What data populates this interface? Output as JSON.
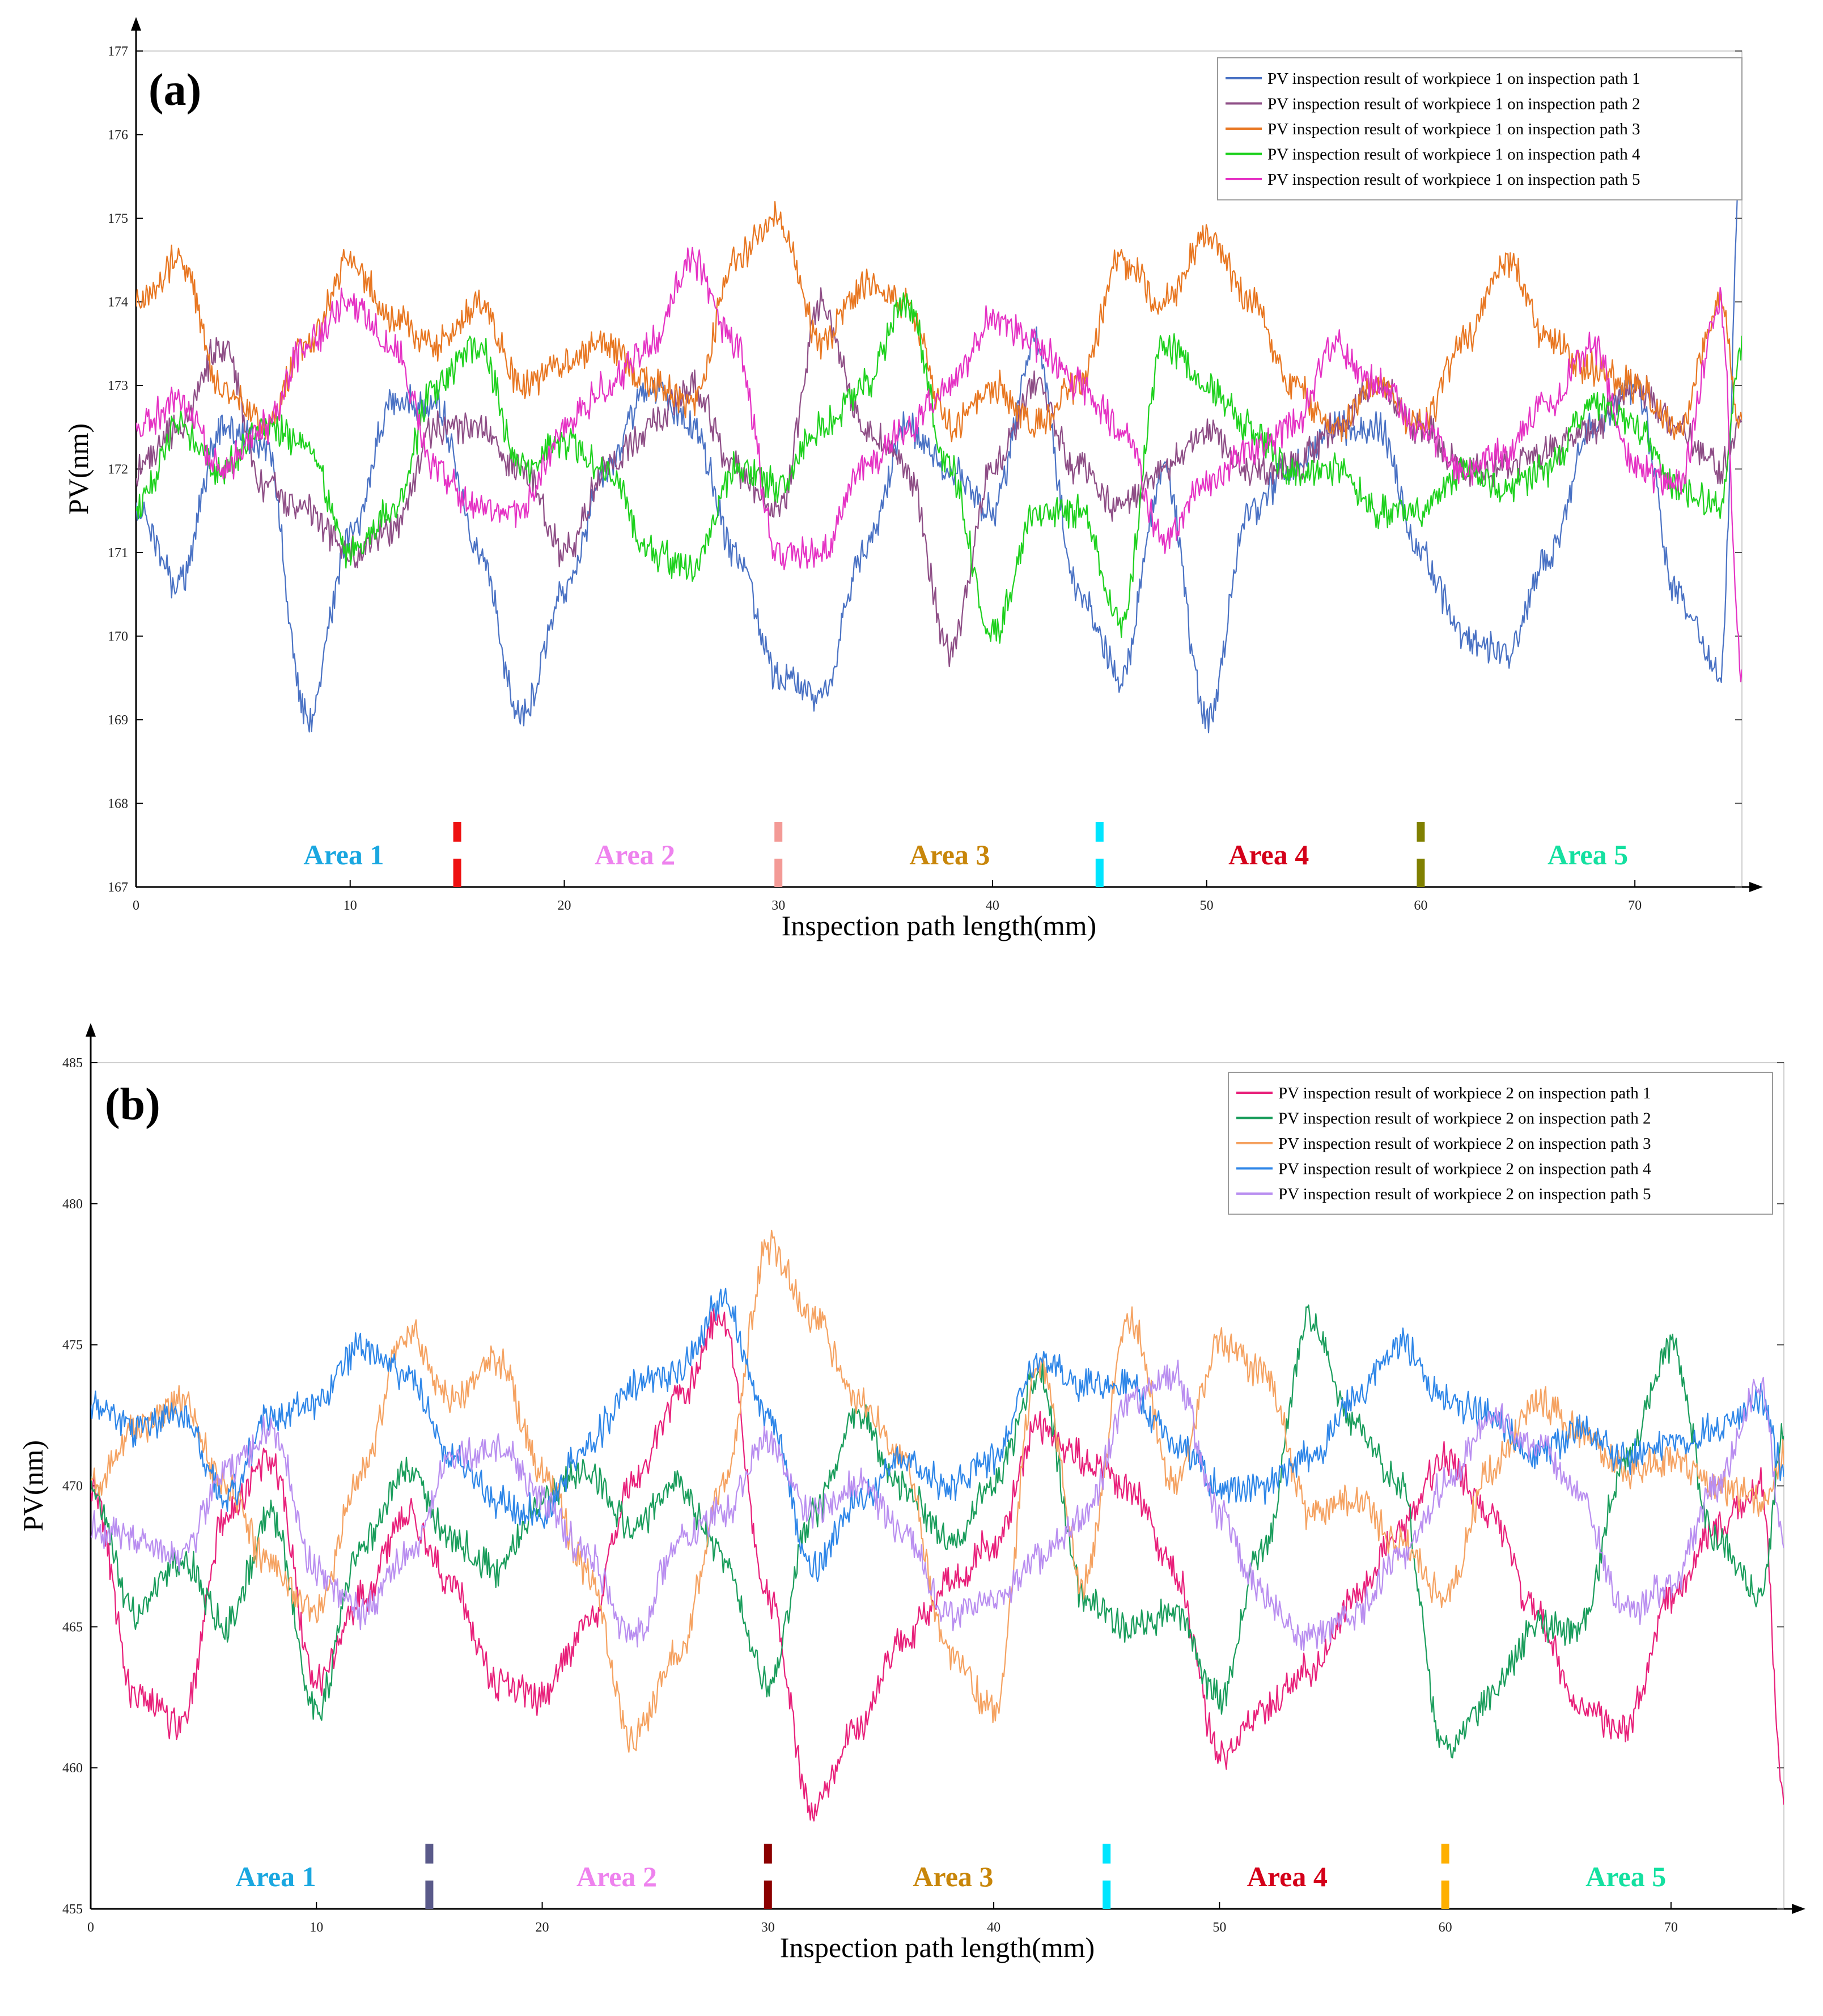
{
  "chart_data": [
    {
      "panel_label": "(a)",
      "type": "line",
      "xlabel": "Inspection path length(mm)",
      "ylabel": "PV(nm)",
      "xlim": [
        0,
        75
      ],
      "ylim": [
        167,
        177
      ],
      "xticks": [
        0,
        10,
        20,
        30,
        40,
        50,
        60,
        70
      ],
      "xtick_labels": [
        "0",
        "10",
        "20",
        "30",
        "40",
        "50",
        "60",
        "70"
      ],
      "yticks": [
        167,
        168,
        169,
        170,
        171,
        172,
        173,
        174,
        175,
        176,
        177
      ],
      "ytick_labels": [
        "167",
        "168",
        "169",
        "170",
        "171",
        "172",
        "173",
        "174",
        "175",
        "176",
        "177"
      ],
      "legend_position": "top-right",
      "series": [
        {
          "name": "PV inspection result of workpiece 1 on inspection path 1",
          "color": "#4a72c4",
          "x": [
            0,
            2,
            4,
            6,
            8,
            10,
            12,
            14,
            16,
            18,
            20,
            22,
            24,
            26,
            28,
            30,
            32,
            34,
            36,
            38,
            40,
            42,
            44,
            46,
            48,
            50,
            52,
            54,
            56,
            58,
            60,
            62,
            64,
            66,
            68,
            70,
            72,
            74,
            75
          ],
          "values": [
            171.5,
            170.6,
            172.5,
            172.3,
            169.0,
            171.2,
            172.8,
            172.8,
            171.0,
            169.0,
            170.5,
            172.0,
            173.0,
            172.5,
            171.0,
            169.5,
            169.3,
            171.0,
            172.5,
            172.0,
            171.5,
            173.5,
            170.5,
            169.5,
            172.0,
            169.0,
            171.5,
            172.0,
            172.5,
            172.5,
            171.0,
            170.0,
            169.8,
            171.0,
            172.5,
            173.0,
            170.5,
            169.5,
            176.0
          ]
        },
        {
          "name": "PV inspection result of workpiece 1 on inspection path 2",
          "color": "#8e4e86",
          "x": [
            0,
            2,
            4,
            6,
            8,
            10,
            12,
            14,
            16,
            18,
            20,
            22,
            24,
            26,
            28,
            30,
            32,
            34,
            36,
            38,
            40,
            42,
            44,
            46,
            48,
            50,
            52,
            54,
            56,
            58,
            60,
            62,
            64,
            66,
            68,
            70,
            72,
            74,
            75
          ],
          "values": [
            172.0,
            172.5,
            173.5,
            171.8,
            171.5,
            171.0,
            171.3,
            172.5,
            172.5,
            172.0,
            171.0,
            172.0,
            172.5,
            173.0,
            172.0,
            171.5,
            174.0,
            172.5,
            172.0,
            169.8,
            172.0,
            173.0,
            172.0,
            171.5,
            172.0,
            172.5,
            172.0,
            172.0,
            172.5,
            173.0,
            172.5,
            172.0,
            172.0,
            172.2,
            172.5,
            173.0,
            172.5,
            172.0,
            172.5
          ]
        },
        {
          "name": "PV inspection result of workpiece 1 on inspection path 3",
          "color": "#e87722",
          "x": [
            0,
            2,
            4,
            6,
            8,
            10,
            12,
            14,
            16,
            18,
            20,
            22,
            24,
            26,
            28,
            30,
            32,
            34,
            36,
            38,
            40,
            42,
            44,
            46,
            48,
            50,
            52,
            54,
            56,
            58,
            60,
            62,
            64,
            66,
            68,
            70,
            72,
            74,
            75
          ],
          "values": [
            174.0,
            174.5,
            173.0,
            172.5,
            173.5,
            174.5,
            173.8,
            173.5,
            174.0,
            173.0,
            173.3,
            173.5,
            173.0,
            172.8,
            174.5,
            175.0,
            173.5,
            174.2,
            174.0,
            172.5,
            173.0,
            172.5,
            173.0,
            174.5,
            174.0,
            174.8,
            174.0,
            173.0,
            172.5,
            173.0,
            172.5,
            173.5,
            174.5,
            173.5,
            173.2,
            173.0,
            172.5,
            174.0,
            172.5
          ]
        },
        {
          "name": "PV inspection result of workpiece 1 on inspection path 4",
          "color": "#1ed11e",
          "x": [
            0,
            2,
            4,
            6,
            8,
            10,
            12,
            14,
            16,
            18,
            20,
            22,
            24,
            26,
            28,
            30,
            32,
            34,
            36,
            38,
            40,
            42,
            44,
            46,
            48,
            50,
            52,
            54,
            56,
            58,
            60,
            62,
            64,
            66,
            68,
            70,
            72,
            74,
            75
          ],
          "values": [
            171.5,
            172.5,
            172.0,
            172.5,
            172.3,
            171.0,
            171.5,
            173.0,
            173.5,
            172.0,
            172.3,
            172.0,
            171.0,
            170.8,
            172.0,
            171.8,
            172.5,
            173.0,
            174.0,
            172.0,
            170.0,
            171.5,
            171.5,
            170.2,
            173.5,
            173.0,
            172.5,
            172.0,
            172.0,
            171.5,
            171.5,
            172.0,
            171.8,
            172.0,
            172.8,
            172.5,
            171.8,
            171.5,
            173.5
          ]
        },
        {
          "name": "PV inspection result of workpiece 1 on inspection path 5",
          "color": "#e532c4",
          "x": [
            0,
            2,
            4,
            6,
            8,
            10,
            12,
            14,
            16,
            18,
            20,
            22,
            24,
            26,
            28,
            30,
            32,
            34,
            36,
            38,
            40,
            42,
            44,
            46,
            48,
            50,
            52,
            54,
            56,
            58,
            60,
            62,
            64,
            66,
            68,
            70,
            72,
            74,
            75
          ],
          "values": [
            172.5,
            172.8,
            172.0,
            172.5,
            173.5,
            174.0,
            173.5,
            172.0,
            171.5,
            171.5,
            172.5,
            173.0,
            173.5,
            174.5,
            173.5,
            171.0,
            171.0,
            172.0,
            172.5,
            173.0,
            173.8,
            173.5,
            173.0,
            172.5,
            171.2,
            171.8,
            172.2,
            172.5,
            173.5,
            173.0,
            172.5,
            172.0,
            172.2,
            172.8,
            173.5,
            172.0,
            171.8,
            174.0,
            169.5
          ]
        }
      ],
      "area_labels": [
        {
          "text": "Area 1",
          "x": 9.7,
          "color": "#1aa7e0"
        },
        {
          "text": "Area 2",
          "x": 23.3,
          "color": "#ee82ee"
        },
        {
          "text": "Area 3",
          "x": 38.0,
          "color": "#c8860a"
        },
        {
          "text": "Area 4",
          "x": 52.9,
          "color": "#d4001a"
        },
        {
          "text": "Area 5",
          "x": 67.8,
          "color": "#14e0a0"
        }
      ],
      "boundaries": [
        {
          "x": 15,
          "color": "#ee1111"
        },
        {
          "x": 30,
          "color": "#f39a96"
        },
        {
          "x": 45,
          "color": "#00e5ff"
        },
        {
          "x": 60,
          "color": "#808000"
        }
      ]
    },
    {
      "panel_label": "(b)",
      "type": "line",
      "xlabel": "Inspection path length(mm)",
      "ylabel": "PV(nm)",
      "xlim": [
        0,
        75
      ],
      "ylim": [
        455,
        485
      ],
      "xticks": [
        0,
        10,
        20,
        30,
        40,
        50,
        60,
        70
      ],
      "xtick_labels": [
        "0",
        "10",
        "20",
        "30",
        "40",
        "50",
        "60",
        "70"
      ],
      "yticks": [
        455,
        460,
        465,
        470,
        475,
        480,
        485
      ],
      "ytick_labels": [
        "455",
        "460",
        "465",
        "470",
        "475",
        "480",
        "485"
      ],
      "legend_position": "top-right",
      "series": [
        {
          "name": "PV inspection result of workpiece 2 on inspection path 1",
          "color": "#e8207a",
          "x": [
            0,
            2,
            4,
            6,
            8,
            10,
            12,
            14,
            16,
            18,
            20,
            22,
            24,
            26,
            28,
            30,
            32,
            34,
            36,
            38,
            40,
            42,
            44,
            46,
            48,
            50,
            52,
            54,
            56,
            58,
            60,
            62,
            64,
            66,
            68,
            70,
            72,
            74,
            75
          ],
          "values": [
            470.0,
            462.5,
            461.5,
            469.0,
            471.0,
            463.0,
            466.0,
            469.0,
            466.5,
            463.0,
            462.5,
            465.0,
            470.0,
            473.0,
            476.0,
            466.0,
            458.5,
            461.5,
            464.5,
            466.5,
            468.0,
            472.0,
            471.0,
            470.0,
            467.0,
            460.5,
            462.0,
            463.5,
            466.0,
            468.5,
            471.0,
            469.0,
            465.5,
            462.0,
            461.5,
            466.0,
            468.5,
            470.0,
            459.0
          ]
        },
        {
          "name": "PV inspection result of workpiece 2 on inspection path 2",
          "color": "#1a9d5c",
          "x": [
            0,
            2,
            4,
            6,
            8,
            10,
            12,
            14,
            16,
            18,
            20,
            22,
            24,
            26,
            28,
            30,
            32,
            34,
            36,
            38,
            40,
            42,
            44,
            46,
            48,
            50,
            52,
            54,
            56,
            58,
            60,
            62,
            64,
            66,
            68,
            70,
            72,
            74,
            75
          ],
          "values": [
            470.0,
            465.5,
            467.5,
            465.0,
            469.0,
            462.0,
            468.0,
            470.5,
            468.0,
            467.0,
            469.5,
            470.5,
            468.5,
            470.0,
            467.5,
            463.0,
            469.0,
            472.5,
            470.0,
            468.0,
            470.0,
            474.0,
            466.0,
            465.0,
            465.5,
            462.5,
            468.0,
            476.0,
            472.0,
            470.0,
            460.5,
            462.5,
            465.0,
            465.0,
            471.0,
            475.0,
            468.0,
            466.0,
            472.0
          ]
        },
        {
          "name": "PV inspection result of workpiece 2 on inspection path 3",
          "color": "#f5a261",
          "x": [
            0,
            2,
            4,
            6,
            8,
            10,
            12,
            14,
            16,
            18,
            20,
            22,
            24,
            26,
            28,
            30,
            32,
            34,
            36,
            38,
            40,
            42,
            44,
            46,
            48,
            50,
            52,
            54,
            56,
            58,
            60,
            62,
            64,
            66,
            68,
            70,
            72,
            74,
            75
          ],
          "values": [
            470.0,
            472.0,
            473.0,
            470.0,
            467.0,
            465.5,
            470.5,
            475.5,
            473.0,
            474.5,
            470.5,
            467.0,
            461.0,
            464.0,
            470.0,
            478.5,
            476.0,
            473.0,
            471.0,
            464.0,
            462.0,
            474.5,
            466.5,
            476.0,
            470.0,
            475.0,
            474.0,
            469.0,
            469.5,
            468.0,
            466.0,
            470.5,
            473.0,
            472.0,
            470.5,
            471.0,
            470.0,
            469.5,
            471.0
          ]
        },
        {
          "name": "PV inspection result of workpiece 2 on inspection path 4",
          "color": "#2e86e8",
          "x": [
            0,
            2,
            4,
            6,
            8,
            10,
            12,
            14,
            16,
            18,
            20,
            22,
            24,
            26,
            28,
            30,
            32,
            34,
            36,
            38,
            40,
            42,
            44,
            46,
            48,
            50,
            52,
            54,
            56,
            58,
            60,
            62,
            64,
            66,
            68,
            70,
            72,
            74,
            75
          ],
          "values": [
            473.0,
            472.0,
            472.5,
            469.5,
            472.5,
            473.0,
            475.0,
            474.0,
            471.0,
            469.5,
            469.0,
            471.5,
            473.5,
            474.0,
            476.5,
            472.5,
            467.0,
            469.5,
            471.0,
            470.0,
            471.0,
            474.5,
            473.5,
            473.5,
            471.5,
            470.0,
            470.0,
            471.0,
            473.0,
            475.0,
            473.0,
            472.5,
            471.0,
            472.0,
            471.0,
            471.5,
            472.0,
            473.0,
            470.5
          ]
        },
        {
          "name": "PV inspection result of workpiece 2 on inspection path 5",
          "color": "#b98ef0",
          "x": [
            0,
            2,
            4,
            6,
            8,
            10,
            12,
            14,
            16,
            18,
            20,
            22,
            24,
            26,
            28,
            30,
            32,
            34,
            36,
            38,
            40,
            42,
            44,
            46,
            48,
            50,
            52,
            54,
            56,
            58,
            60,
            62,
            64,
            66,
            68,
            70,
            72,
            74,
            75
          ],
          "values": [
            468.5,
            468.0,
            467.5,
            470.5,
            472.0,
            467.0,
            465.5,
            467.5,
            471.0,
            471.5,
            469.5,
            467.5,
            464.5,
            468.0,
            469.0,
            471.5,
            469.0,
            470.0,
            468.5,
            465.5,
            466.0,
            467.5,
            469.0,
            473.0,
            474.0,
            469.0,
            466.0,
            464.5,
            465.5,
            467.5,
            470.0,
            472.5,
            471.5,
            469.5,
            465.5,
            466.5,
            470.0,
            473.5,
            468.0
          ]
        }
      ],
      "area_labels": [
        {
          "text": "Area 1",
          "x": 8.2,
          "color": "#1aa7e0"
        },
        {
          "text": "Area 2",
          "x": 23.3,
          "color": "#ee82ee"
        },
        {
          "text": "Area 3",
          "x": 38.2,
          "color": "#c8860a"
        },
        {
          "text": "Area 4",
          "x": 53.0,
          "color": "#d4001a"
        },
        {
          "text": "Area 5",
          "x": 68.0,
          "color": "#14e0a0"
        }
      ],
      "boundaries": [
        {
          "x": 15,
          "color": "#5a5a8a"
        },
        {
          "x": 30,
          "color": "#8b0000"
        },
        {
          "x": 45,
          "color": "#00e5ff"
        },
        {
          "x": 60,
          "color": "#ffb000"
        }
      ]
    }
  ]
}
